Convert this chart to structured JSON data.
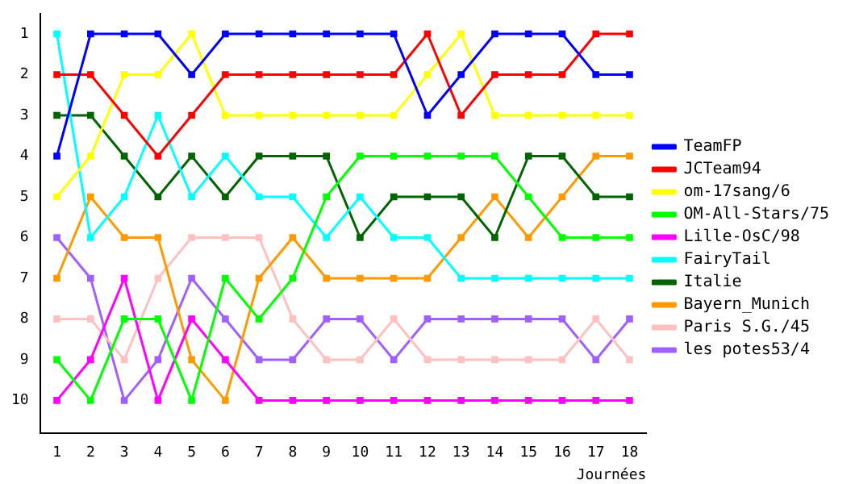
{
  "chart_data": {
    "type": "line",
    "xlabel": "Journées",
    "x": [
      1,
      2,
      3,
      4,
      5,
      6,
      7,
      8,
      9,
      10,
      11,
      12,
      13,
      14,
      15,
      16,
      17,
      18
    ],
    "xlim": [
      0.5,
      18.5
    ],
    "xticks": [
      1,
      2,
      3,
      4,
      5,
      6,
      7,
      8,
      9,
      10,
      11,
      12,
      13,
      14,
      15,
      16,
      17,
      18
    ],
    "ylim": [
      10.8,
      0.5
    ],
    "yticks": [
      1,
      2,
      3,
      4,
      5,
      6,
      7,
      8,
      9,
      10
    ],
    "grid": false,
    "legend": "right",
    "marker": "square",
    "line_style": "solid",
    "series": [
      {
        "name": "TeamFP",
        "color": "#0000ff",
        "values": [
          4,
          1,
          1,
          1,
          2,
          1,
          1,
          1,
          1,
          1,
          1,
          3,
          2,
          1,
          1,
          1,
          2,
          2
        ]
      },
      {
        "name": "JCTeam94",
        "color": "#ff0000",
        "values": [
          2,
          2,
          3,
          4,
          3,
          2,
          2,
          2,
          2,
          2,
          2,
          1,
          3,
          2,
          2,
          2,
          1,
          1
        ]
      },
      {
        "name": "om-17sang/6",
        "color": "#ffff00",
        "values": [
          5,
          4,
          2,
          2,
          1,
          3,
          3,
          3,
          3,
          3,
          3,
          2,
          1,
          3,
          3,
          3,
          3,
          3
        ]
      },
      {
        "name": "OM-All-Stars/75",
        "color": "#00ff00",
        "values": [
          9,
          10,
          8,
          8,
          10,
          7,
          8,
          7,
          5,
          4,
          4,
          4,
          4,
          4,
          5,
          6,
          6,
          6
        ]
      },
      {
        "name": "Lille-OsC/98",
        "color": "#ff00ff",
        "values": [
          10,
          9,
          7,
          10,
          8,
          9,
          10,
          10,
          10,
          10,
          10,
          10,
          10,
          10,
          10,
          10,
          10,
          10
        ]
      },
      {
        "name": "FairyTail",
        "color": "#00ffff",
        "values": [
          1,
          6,
          5,
          3,
          5,
          4,
          5,
          5,
          6,
          5,
          6,
          6,
          7,
          7,
          7,
          7,
          7,
          7
        ]
      },
      {
        "name": "Italie",
        "color": "#006400",
        "values": [
          3,
          3,
          4,
          5,
          4,
          5,
          4,
          4,
          4,
          6,
          5,
          5,
          5,
          6,
          4,
          4,
          5,
          5
        ]
      },
      {
        "name": "Bayern_Munich",
        "color": "#ff9900",
        "values": [
          7,
          5,
          6,
          6,
          9,
          10,
          7,
          6,
          7,
          7,
          7,
          7,
          6,
          5,
          6,
          5,
          4,
          4
        ]
      },
      {
        "name": "Paris S.G./45",
        "color": "#ffc0c0",
        "values": [
          8,
          8,
          9,
          7,
          6,
          6,
          6,
          8,
          9,
          9,
          8,
          9,
          9,
          9,
          9,
          9,
          8,
          9
        ]
      },
      {
        "name": "les potes53/4",
        "color": "#a060ff",
        "values": [
          6,
          7,
          10,
          9,
          7,
          8,
          9,
          9,
          8,
          8,
          9,
          8,
          8,
          8,
          8,
          8,
          9,
          8
        ]
      }
    ]
  }
}
